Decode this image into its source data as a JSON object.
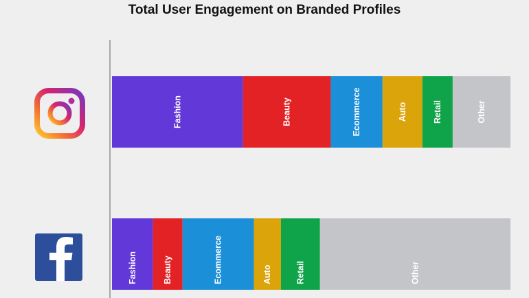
{
  "title": "Total User Engagement on Branded Profiles",
  "chart_data": {
    "type": "bar",
    "orientation": "horizontal",
    "stacked": true,
    "normalized": true,
    "title": "Total User Engagement on Branded Profiles",
    "categories": [
      "Instagram",
      "Facebook"
    ],
    "category_icons": [
      "instagram-logo",
      "facebook-logo"
    ],
    "segment_labels": [
      "Fashion",
      "Beauty",
      "Ecommerce",
      "Auto",
      "Retail",
      "Other"
    ],
    "colors": [
      "#6238d8",
      "#e32226",
      "#1c8fd9",
      "#dba40a",
      "#10a44a",
      "#c3c5c8"
    ],
    "series": [
      {
        "name": "Fashion",
        "values": [
          32.9,
          10.3
        ]
      },
      {
        "name": "Beauty",
        "values": [
          22.0,
          7.4
        ]
      },
      {
        "name": "Ecommerce",
        "values": [
          13.0,
          17.9
        ]
      },
      {
        "name": "Auto",
        "values": [
          10.0,
          6.8
        ]
      },
      {
        "name": "Retail",
        "values": [
          7.6,
          9.8
        ]
      },
      {
        "name": "Other",
        "values": [
          14.5,
          47.8
        ]
      }
    ],
    "xlim": [
      0,
      100
    ],
    "grid": false,
    "legend": "none"
  }
}
